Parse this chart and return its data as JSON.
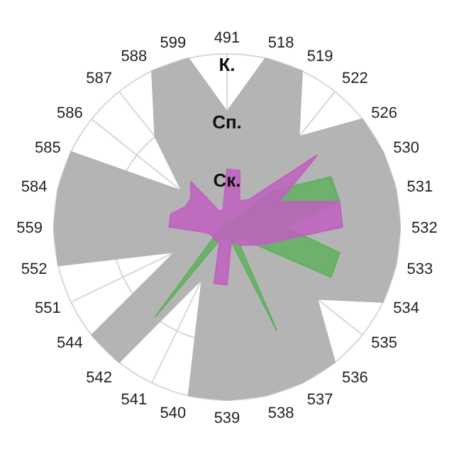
{
  "chart_data": {
    "type": "radar",
    "categories": [
      "491",
      "518",
      "519",
      "522",
      "526",
      "530",
      "531",
      "532",
      "533",
      "534",
      "535",
      "536",
      "537",
      "538",
      "539",
      "540",
      "541",
      "542",
      "544",
      "551",
      "552",
      "559",
      "584",
      "585",
      "586",
      "587",
      "588",
      "599"
    ],
    "ylim": [
      0,
      3
    ],
    "yticks": [
      {
        "value": 1,
        "label": "Ск."
      },
      {
        "value": 2,
        "label": "Сп."
      },
      {
        "value": 3,
        "label": "К."
      }
    ],
    "grid": true,
    "series": [
      {
        "color": "#b4b4b4",
        "values": [
          2,
          3,
          3,
          2,
          3,
          3,
          3,
          3,
          3,
          3,
          2,
          3,
          3,
          3,
          3,
          3,
          1,
          3,
          3,
          1,
          3,
          3,
          3,
          3,
          1,
          2,
          3,
          3
        ]
      },
      {
        "color": "#60b060",
        "values": [
          0.1,
          0.1,
          0.1,
          0.1,
          1,
          2,
          2,
          1,
          2,
          2,
          0.3,
          0.3,
          2,
          0.2,
          0.2,
          0.2,
          0.2,
          2,
          0.3,
          0.2,
          0.1,
          0.1,
          0.1,
          0.1,
          0.1,
          0.1,
          0.1,
          0.1
        ]
      },
      {
        "color": "#c060c0",
        "values": [
          1,
          1,
          0.5,
          0.6,
          2,
          1,
          2,
          2,
          1,
          0.7,
          0.5,
          0.4,
          0.3,
          0.3,
          1,
          1,
          0.3,
          0.3,
          0.3,
          0.3,
          0.4,
          1,
          1,
          0.8,
          0.8,
          1,
          0.3,
          0.3
        ]
      }
    ]
  }
}
